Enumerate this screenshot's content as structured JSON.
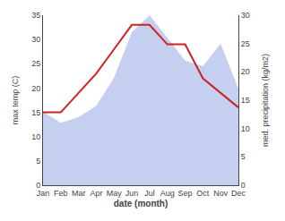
{
  "chart_data": {
    "type": "line",
    "categories": [
      "Jan",
      "Feb",
      "Mar",
      "Apr",
      "May",
      "Jun",
      "Jul",
      "Aug",
      "Sep",
      "Oct",
      "Nov",
      "Dec"
    ],
    "series": [
      {
        "type": "area",
        "axis": "y2",
        "color": "#c5cff0",
        "values": [
          13,
          11,
          12,
          14,
          19,
          27,
          30,
          26,
          22,
          21,
          25,
          17
        ]
      },
      {
        "type": "line",
        "color": "#cc2222",
        "values": [
          15,
          15,
          19,
          23,
          28,
          33,
          33,
          29,
          29,
          22,
          19,
          16
        ]
      }
    ],
    "xlabel": "date (month)",
    "ylabel": "max temp (C)",
    "y2label": "med. precipitation (kg/m2)",
    "ylim": [
      0,
      35
    ],
    "yticks": [
      0,
      5,
      10,
      15,
      20,
      25,
      30,
      35
    ],
    "y2lim": [
      0,
      30
    ],
    "y2ticks": [
      0,
      5,
      10,
      15,
      20,
      25,
      30
    ],
    "grid": false
  }
}
